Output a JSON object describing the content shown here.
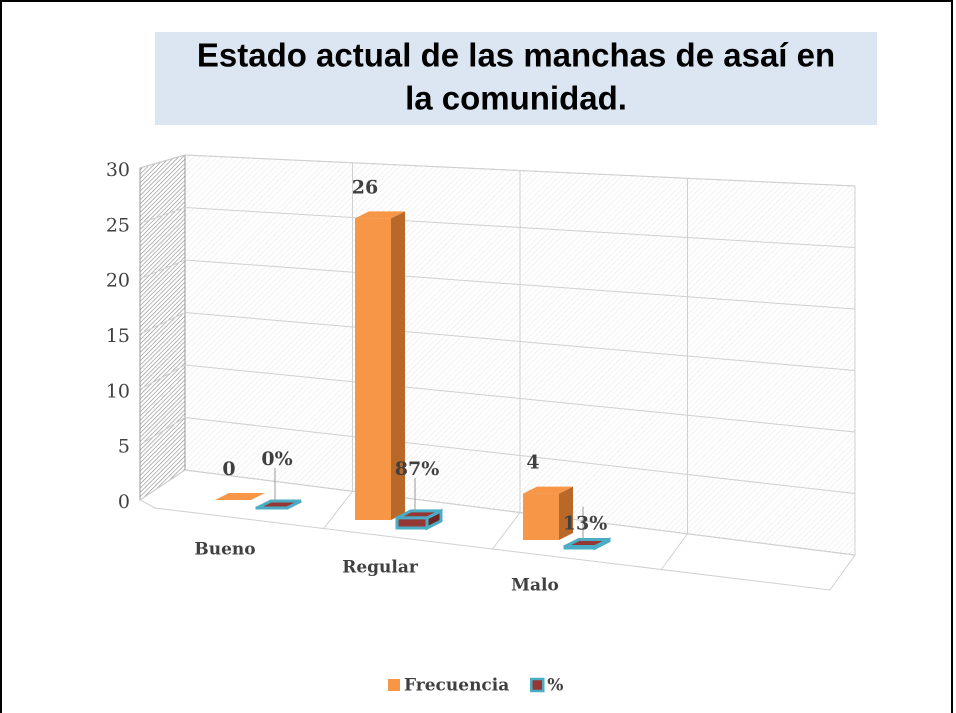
{
  "chart_data": {
    "type": "bar3d",
    "title": [
      "Estado  actual de las manchas de asaí en",
      "la comunidad."
    ],
    "categories": [
      "Bueno",
      "Regular",
      "Malo"
    ],
    "series": [
      {
        "name": "Frecuencia",
        "color": "#f79646",
        "values": [
          0,
          26,
          4
        ]
      },
      {
        "name": "%",
        "color": "#953735",
        "edge": "#4bacc6",
        "values": [
          0,
          0.87,
          0.13
        ],
        "value_labels": [
          "0%",
          "87%",
          "13%"
        ]
      }
    ],
    "ylim": [
      0,
      30
    ],
    "yticks": [
      0,
      5,
      10,
      15,
      20,
      25,
      30
    ],
    "grid": true,
    "legend": "bottom"
  }
}
